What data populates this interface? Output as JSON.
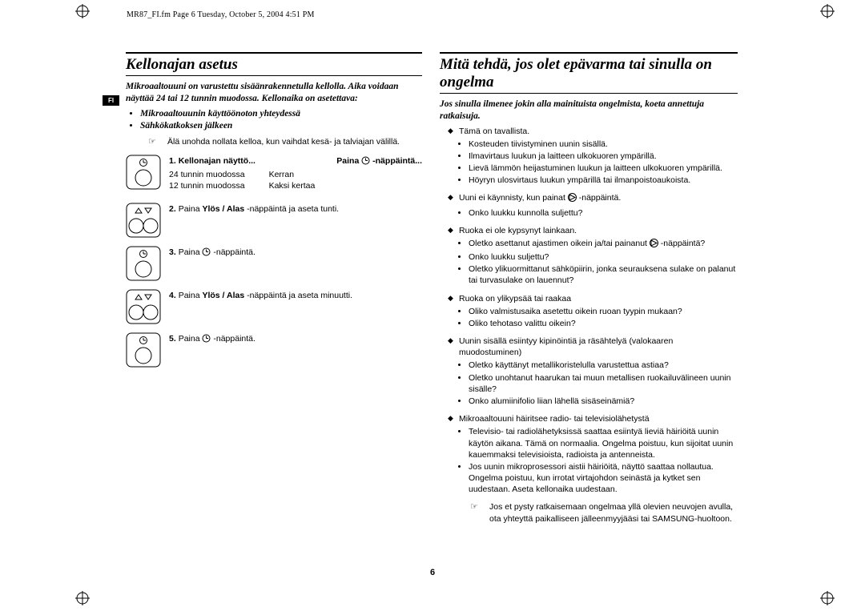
{
  "header": "MR87_FI.fm  Page 6  Tuesday, October 5, 2004  4:51 PM",
  "lang_tab": "FI",
  "page_number": "6",
  "left": {
    "title": "Kellonajan asetus",
    "intro": "Mikroaaltouuni on varustettu sisäänrakennetulla kellolla. Aika voidaan näyttää 24 tai 12 tunnin muodossa. Kellonaika on asetettava:",
    "bullets": [
      "Mikroaaltouunin käyttöönoton yhteydessä",
      "Sähkökatkoksen jälkeen"
    ],
    "note": "Älä unohda nollata kelloa, kun vaihdat kesä- ja talviajan välillä.",
    "steps": [
      {
        "num": "1.",
        "head_left": "Kellonajan näyttö...",
        "head_right_pre": "Paina ",
        "head_right_post": " -näppäintä...",
        "col_left": [
          "24 tunnin muodossa",
          "12 tunnin muodossa"
        ],
        "col_right": [
          "Kerran",
          "Kaksi kertaa"
        ],
        "icon": "clock"
      },
      {
        "num": "2.",
        "text_pre": "Paina ",
        "text_bold": "Ylös / Alas",
        "text_post": " -näppäintä ja aseta tunti.",
        "icon": "updown"
      },
      {
        "num": "3.",
        "text_pre": "Paina ",
        "text_post": " -näppäintä.",
        "icon": "clock"
      },
      {
        "num": "4.",
        "text_pre": "Paina ",
        "text_bold": "Ylös / Alas",
        "text_post": " -näppäintä ja aseta minuutti.",
        "icon": "updown"
      },
      {
        "num": "5.",
        "text_pre": "Paina ",
        "text_post": " -näppäintä.",
        "icon": "clock"
      }
    ]
  },
  "right": {
    "title": "Mitä tehdä, jos olet epävarma tai sinulla on ongelma",
    "intro": "Jos sinulla ilmenee jokin alla mainituista ongelmista, koeta annettuja ratkaisuja.",
    "items": [
      {
        "lead": "Tämä on tavallista.",
        "subs": [
          "Kosteuden tiivistyminen uunin sisällä.",
          "Ilmavirtaus luukun ja laitteen ulkokuoren ympärillä.",
          "Lievä lämmön heijastuminen luukun ja laitteen ulkokuoren ympärillä.",
          "Höyryn ulosvirtaus luukun ympärillä tai ilmanpoistoaukoista."
        ]
      },
      {
        "lead_pre": "Uuni ei käynnisty, kun painat ",
        "lead_post": " -näppäintä.",
        "has_icon": true,
        "subs": [
          "Onko luukku kunnolla suljettu?"
        ]
      },
      {
        "lead": "Ruoka ei ole kypsynyt lainkaan.",
        "subs": [
          {
            "pre": "Oletko asettanut ajastimen oikein ja/tai painanut ",
            "has_icon": true,
            "post": " -näppäintä?"
          },
          "Onko luukku suljettu?",
          "Oletko ylikuormittanut sähköpiirin, jonka seurauksena sulake on palanut tai turvasulake on lauennut?"
        ]
      },
      {
        "lead": "Ruoka on ylikypsää tai raakaa",
        "subs": [
          "Oliko valmistusaika asetettu oikein ruoan tyypin mukaan?",
          "Oliko tehotaso valittu oikein?"
        ]
      },
      {
        "lead": "Uunin sisällä esiintyy kipinöintiä ja räsähtelyä (valokaaren muodostuminen)",
        "subs": [
          "Oletko käyttänyt metallikoristelulla varustettua astiaa?",
          "Oletko unohtanut haarukan tai muun metallisen ruokailuvälineen uunin sisälle?",
          "Onko alumiinifolio liian lähellä sisäseinämiä?"
        ]
      },
      {
        "lead": "Mikroaaltouuni häiritsee radio- tai televisiolähetystä",
        "subs": [
          "Televisio- tai radiolähetyksissä saattaa esiintyä lieviä häiriöitä uunin käytön aikana. Tämä on normaalia. Ongelma poistuu, kun sijoitat uunin kauemmaksi televisioista, radioista ja antenneista.",
          "Jos uunin mikroprosessori aistii häiriöitä, näyttö saattaa nollautua. Ongelma poistuu, kun irrotat virtajohdon seinästä ja kytket sen uudestaan. Aseta kellonaika uudestaan."
        ]
      }
    ],
    "final_note": "Jos et pysty ratkaisemaan ongelmaa yllä olevien neuvojen avulla, ota yhteyttä paikalliseen jälleenmyyjääsi tai SAMSUNG-huoltoon."
  }
}
